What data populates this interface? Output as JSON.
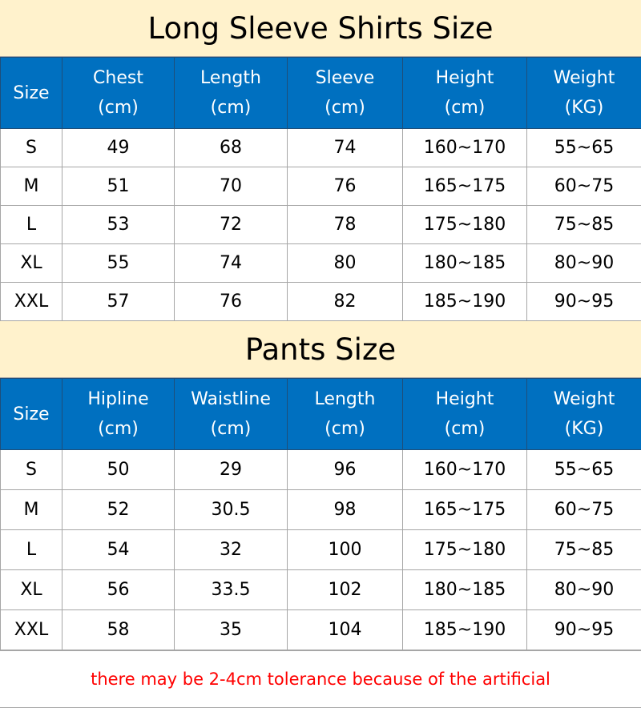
{
  "shirts": {
    "title": "Long Sleeve Shirts Size",
    "headers": [
      [
        "Size",
        ""
      ],
      [
        "Chest",
        "(cm)"
      ],
      [
        "Length",
        "(cm)"
      ],
      [
        "Sleeve",
        "(cm)"
      ],
      [
        "Height",
        "(cm)"
      ],
      [
        "Weight",
        "(KG)"
      ]
    ],
    "rows": [
      [
        "S",
        "49",
        "68",
        "74",
        "160~170",
        "55~65"
      ],
      [
        "M",
        "51",
        "70",
        "76",
        "165~175",
        "60~75"
      ],
      [
        "L",
        "53",
        "72",
        "78",
        "175~180",
        "75~85"
      ],
      [
        "XL",
        "55",
        "74",
        "80",
        "180~185",
        "80~90"
      ],
      [
        "XXL",
        "57",
        "76",
        "82",
        "185~190",
        "90~95"
      ]
    ]
  },
  "pants": {
    "title": "Pants Size",
    "headers": [
      [
        "Size",
        ""
      ],
      [
        "Hipline",
        "(cm)"
      ],
      [
        "Waistline",
        "(cm)"
      ],
      [
        "Length",
        "(cm)"
      ],
      [
        "Height",
        "(cm)"
      ],
      [
        "Weight",
        "(KG)"
      ]
    ],
    "rows": [
      [
        "S",
        "50",
        "29",
        "96",
        "160~170",
        "55~65"
      ],
      [
        "M",
        "52",
        "30.5",
        "98",
        "165~175",
        "60~75"
      ],
      [
        "L",
        "54",
        "32",
        "100",
        "175~180",
        "75~85"
      ],
      [
        "XL",
        "56",
        "33.5",
        "102",
        "180~185",
        "80~90"
      ],
      [
        "XXL",
        "58",
        "35",
        "104",
        "185~190",
        "90~95"
      ]
    ]
  },
  "footer": "there may be 2-4cm tolerance because of the artificial",
  "colors": {
    "title_bg": "#fff2cc",
    "header_bg": "#0070c0",
    "footer_text": "#ff0000"
  }
}
